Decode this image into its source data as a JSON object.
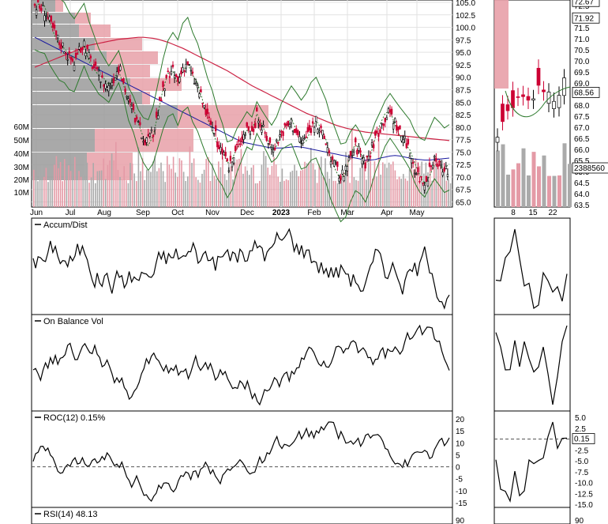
{
  "colors": {
    "up_candle": "#000000",
    "down_candle": "#cc0033",
    "ma_long": "#cc2244",
    "ma_mid": "#1a1aa0",
    "bollinger": "#2d7a2d",
    "ma_short_dotted": "#2d7a2d",
    "vol_by_price_up": "#9a9a9a",
    "vol_by_price_down": "#e8a0a8",
    "volume_bar": "#aaaaaa",
    "volume_bar_red": "#e49aa6",
    "indicator_line": "#000000",
    "grid": "#e2e2e2"
  },
  "price_panel": {
    "price_axis_ticks": [
      "105.0",
      "102.5",
      "100.0",
      "97.5",
      "95.0",
      "92.5",
      "90.0",
      "87.5",
      "85.0",
      "82.5",
      "80.0",
      "77.5",
      "75.0",
      "72.5",
      "70.0",
      "67.5",
      "65.0"
    ],
    "volume_axis_ticks": [
      "60M",
      "50M",
      "40M",
      "30M",
      "20M",
      "10M"
    ],
    "month_labels": [
      "Jun",
      "Jul",
      "Aug",
      "Sep",
      "Oct",
      "Nov",
      "Dec",
      "2023",
      "Feb",
      "Mar",
      "Apr",
      "May"
    ],
    "zoom_price_ticks": [
      "72.5",
      "72.0",
      "71.5",
      "71.0",
      "70.5",
      "70.0",
      "69.5",
      "69.0",
      "68.5",
      "68.0",
      "67.5",
      "67.0",
      "66.5",
      "66.0",
      "65.5",
      "65.0",
      "64.5",
      "64.0",
      "63.5"
    ],
    "zoom_last_price": "72.67",
    "zoom_price_marker": "71.92",
    "zoom_ma_marker": "68.56",
    "zoom_volume_marker": "2388560",
    "zoom_day_labels": [
      "8",
      "15",
      "22"
    ]
  },
  "indicators": [
    {
      "name": "Accum/Dist",
      "label": "Accum/Dist"
    },
    {
      "name": "OBV",
      "label": "On Balance Vol"
    },
    {
      "name": "ROC",
      "label": "ROC(12) 0.15%",
      "axis_ticks": [
        "20",
        "15",
        "10",
        "5",
        "0",
        "-5",
        "-10",
        "-15"
      ],
      "zoom_ticks": [
        "5.0",
        "2.5",
        "0.15",
        "-2.5",
        "-5.0",
        "-7.5",
        "-10.0",
        "-12.5",
        "-15.0"
      ],
      "zoom_marker": "0.15"
    },
    {
      "name": "RSI",
      "label": "RSI(14) 48.13",
      "axis_ticks": [
        "90"
      ],
      "zoom_ticks": [
        "90"
      ]
    }
  ],
  "chart_data": {
    "type": "line",
    "title": "",
    "x_labels": [
      "Jun",
      "Jul",
      "Aug",
      "Sep",
      "Oct",
      "Nov",
      "Dec",
      "2023",
      "Feb",
      "Mar",
      "Apr",
      "May"
    ],
    "ylim": [
      63.5,
      105.0
    ],
    "series": [
      {
        "values": [
          104.5,
          104,
          103.5,
          101,
          99,
          97,
          96,
          94,
          93,
          95,
          97,
          94,
          92,
          90,
          89,
          88,
          90,
          92,
          89,
          85,
          83,
          80,
          78,
          77,
          79,
          83,
          87,
          90,
          91,
          89,
          92,
          93,
          90,
          88,
          85,
          82,
          80,
          77,
          75,
          72,
          73,
          76,
          78,
          80,
          79,
          82,
          80,
          78,
          76,
          77,
          79,
          80,
          81,
          79,
          77,
          78,
          80,
          81,
          79,
          77,
          74,
          72,
          70,
          71,
          74,
          76,
          75,
          73,
          75,
          78,
          80,
          82,
          83,
          81,
          79,
          77,
          75,
          72,
          70,
          69,
          71,
          73,
          72,
          71,
          72
        ]
      },
      {
        "values": [
          98,
          97.5,
          97,
          96.5,
          96,
          95.5,
          95,
          94.5,
          94,
          93.5,
          93,
          92.5,
          92,
          91.5,
          91,
          90.5,
          90,
          89.5,
          89,
          88.5,
          88,
          87.5,
          87,
          86.5,
          86,
          85.5,
          85,
          84.5,
          84,
          83.5,
          83,
          82.5,
          82,
          81.5,
          81,
          80.5,
          80,
          79.5,
          79,
          78.5,
          78,
          77.5,
          77,
          76.8,
          76.6,
          76.4,
          76.2,
          76,
          75.8,
          75.8,
          75.8,
          75.9,
          76,
          76.1,
          76,
          75.8,
          75.6,
          75.4,
          75.2,
          75,
          74.8,
          74.6,
          74.4,
          74.2,
          74,
          73.8,
          73.6,
          73.4,
          73.4,
          73.5,
          73.8,
          74,
          74.2,
          74.3,
          74.2,
          74,
          73.8,
          73.6,
          73.5,
          73.4,
          73.4,
          73.5,
          73.6,
          73.7,
          73.8
        ]
      },
      {
        "values": [
          92,
          92.4,
          92.8,
          93.2,
          93.6,
          94,
          94.4,
          94.8,
          95.2,
          95.6,
          96,
          96.4,
          96.6,
          96.8,
          97,
          97.2,
          97.4,
          97.6,
          97.7,
          97.8,
          97.9,
          98,
          98,
          97.9,
          97.8,
          97.6,
          97.3,
          97,
          96.6,
          96.2,
          95.8,
          95.3,
          94.8,
          94.3,
          93.8,
          93.3,
          92.8,
          92.3,
          91.8,
          91.3,
          90.7,
          90.1,
          89.5,
          88.9,
          88.3,
          87.8,
          87.3,
          86.8,
          86.3,
          85.8,
          85.3,
          84.8,
          84.3,
          83.8,
          83.3,
          82.8,
          82.4,
          82,
          81.6,
          81.2,
          80.8,
          80.4,
          80.1,
          79.8,
          79.6,
          79.4,
          79.2,
          79,
          78.9,
          78.8,
          78.7,
          78.6,
          78.5,
          78.4,
          78.3,
          78.2,
          78.1,
          78,
          77.9,
          77.8,
          77.7,
          77.6,
          77.5,
          77.4,
          77.3
        ]
      }
    ]
  }
}
